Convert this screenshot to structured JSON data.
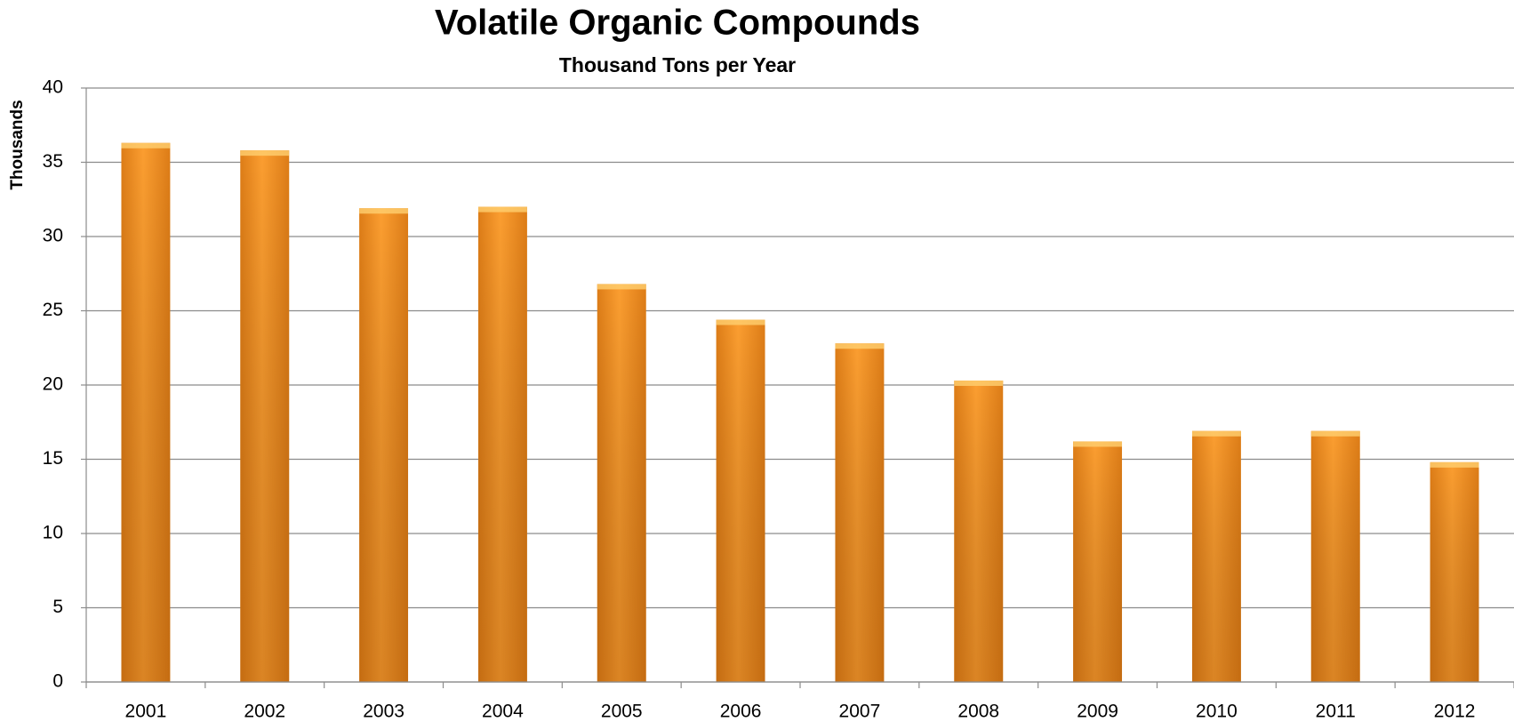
{
  "chart_data": {
    "type": "bar",
    "title": "Volatile Organic Compounds",
    "subtitle": "Thousand Tons per Year",
    "y_label": "Thousands",
    "categories": [
      "2001",
      "2002",
      "2003",
      "2004",
      "2005",
      "2006",
      "2007",
      "2008",
      "2009",
      "2010",
      "2011",
      "2012"
    ],
    "values": [
      36.3,
      35.8,
      31.9,
      32.0,
      26.8,
      24.4,
      22.8,
      20.3,
      16.2,
      16.9,
      16.9,
      14.8
    ],
    "color": "#f7941d",
    "ylim": [
      0,
      40
    ],
    "yticks": [
      0,
      5,
      10,
      15,
      20,
      25,
      30,
      35,
      40
    ],
    "grid": true
  }
}
